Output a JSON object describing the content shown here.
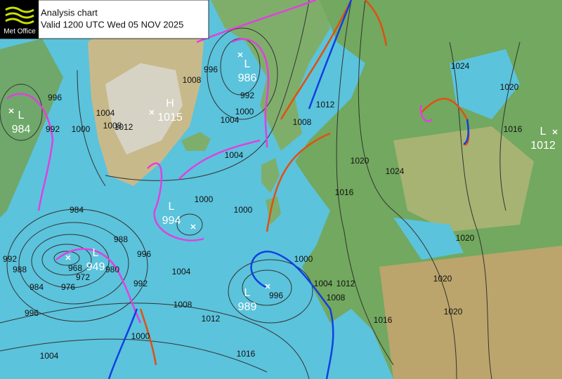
{
  "header": {
    "logo": "Met Office",
    "title": "Analysis chart",
    "valid": "Valid 1200 UTC Wed 05 NOV 2025"
  },
  "pressure_centers": [
    {
      "symbol": "L",
      "value": "986"
    },
    {
      "symbol": "H",
      "value": "1015"
    },
    {
      "symbol": "L",
      "value": "984"
    },
    {
      "symbol": "L",
      "value": "994"
    },
    {
      "symbol": "L",
      "value": "949"
    },
    {
      "symbol": "L",
      "value": "989"
    },
    {
      "symbol": "L",
      "value": "1012"
    }
  ],
  "isobar_labels": [
    "996",
    "1008",
    "992",
    "1000",
    "1004",
    "1004",
    "1000",
    "1000",
    "1004",
    "1000",
    "1008",
    "1012",
    "996",
    "992",
    "984",
    "988",
    "996",
    "980",
    "992",
    "968",
    "972",
    "976",
    "984",
    "988",
    "992",
    "996",
    "1004",
    "1008",
    "1012",
    "1000",
    "1004",
    "1016",
    "996",
    "1000",
    "1004",
    "1008",
    "1012",
    "1016",
    "1020",
    "1020",
    "1020",
    "1024",
    "1016",
    "1020",
    "1012",
    "1008",
    "1024",
    "1020",
    "1016"
  ]
}
